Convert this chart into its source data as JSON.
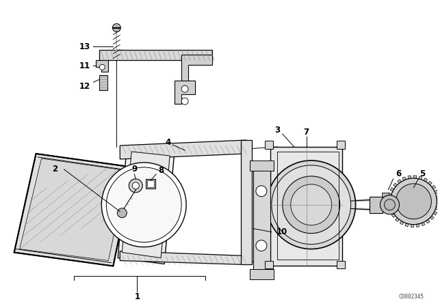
{
  "bg_color": "#ffffff",
  "line_color": "#000000",
  "fig_width": 6.4,
  "fig_height": 4.48,
  "dpi": 100,
  "watermark": "C0002345"
}
